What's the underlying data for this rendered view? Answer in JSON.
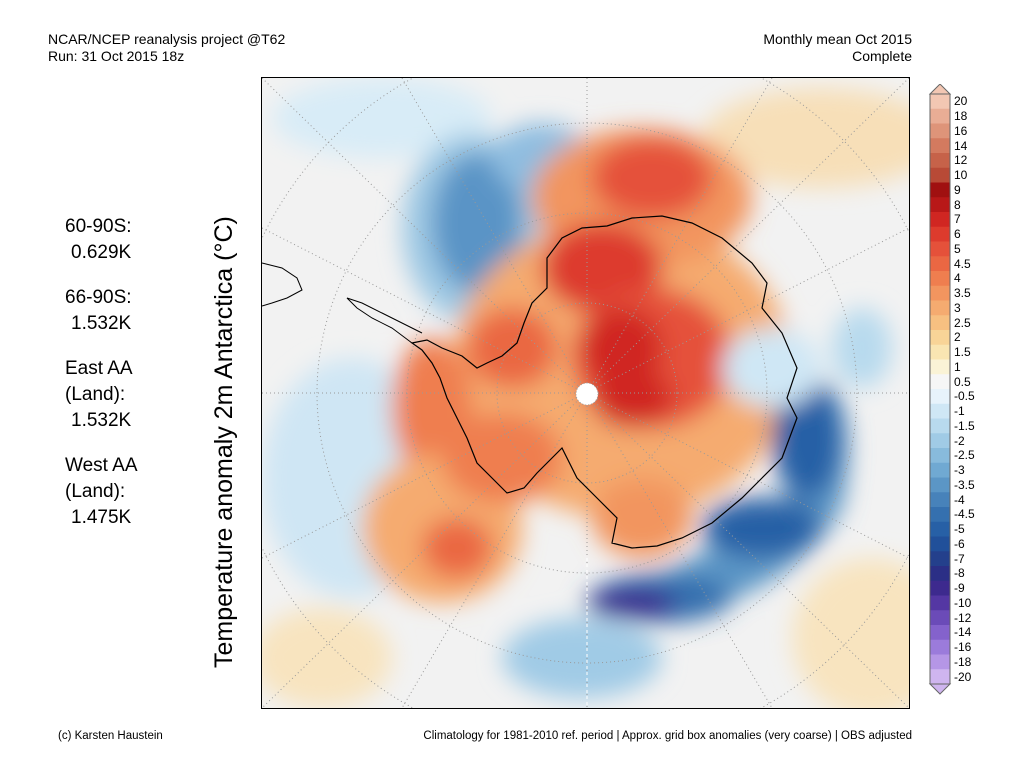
{
  "header": {
    "line1_left": "NCAR/NCEP reanalysis project @T62",
    "line2_left": "Run: 31 Oct 2015 18z",
    "line1_right": "Monthly mean Oct 2015",
    "line2_right": "Complete"
  },
  "stats": [
    {
      "label": "60-90S:",
      "value": "0.629K"
    },
    {
      "label": "66-90S:",
      "value": "1.532K"
    },
    {
      "label": "East AA",
      "label2": "(Land):",
      "value": "1.532K"
    },
    {
      "label": "West AA",
      "label2": "(Land):",
      "value": "1.475K"
    }
  ],
  "vertical_title": "Temperature anomaly 2m Antarctica (°C)",
  "colorbar": {
    "labels": [
      "20",
      "18",
      "16",
      "14",
      "12",
      "10",
      "9",
      "8",
      "7",
      "6",
      "5",
      "4.5",
      "4",
      "3.5",
      "3",
      "2.5",
      "2",
      "1.5",
      "1",
      "0.5",
      "-0.5",
      "-1",
      "-1.5",
      "-2",
      "-2.5",
      "-3",
      "-3.5",
      "-4",
      "-4.5",
      "-5",
      "-6",
      "-7",
      "-8",
      "-9",
      "-10",
      "-12",
      "-14",
      "-16",
      "-18",
      "-20"
    ],
    "colors": [
      "#f3c7b3",
      "#e9ad95",
      "#de9479",
      "#d37a5f",
      "#c66249",
      "#b84a36",
      "#a01010",
      "#b81818",
      "#d02622",
      "#dd3b2d",
      "#e5513a",
      "#ea6743",
      "#ef7e4f",
      "#f2955f",
      "#f5ab70",
      "#f7c081",
      "#f8d497",
      "#f9e5b2",
      "#faf3d6",
      "#f6f6f6",
      "#e7f3fb",
      "#cfe7f5",
      "#b8daee",
      "#a0cbe6",
      "#88bbdc",
      "#70a9d2",
      "#5b96c6",
      "#4782ba",
      "#3570af",
      "#2760a6",
      "#21509a",
      "#24408c",
      "#2b2f86",
      "#3d2a8e",
      "#5437a3",
      "#6b4bb8",
      "#8462cc",
      "#9b7bdb",
      "#b596e6",
      "#cfb5ef"
    ]
  },
  "footer": {
    "left": "(c) Karsten Haustein",
    "right": "Climatology for 1981-2010 ref. period | Approx. grid box anomalies (very coarse) | OBS adjusted"
  }
}
